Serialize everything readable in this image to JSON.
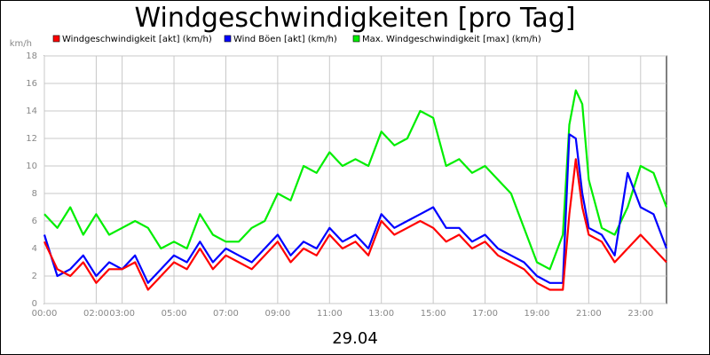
{
  "chart_data": {
    "type": "line",
    "title": "Windgeschwindigkeiten [pro Tag]",
    "ylabel": "km/h",
    "xlabel": "29.04",
    "ylim": [
      0,
      18
    ],
    "yticks": [
      "0",
      "2",
      "4",
      "6",
      "8",
      "10",
      "12",
      "14",
      "16",
      "18"
    ],
    "xticks": [
      "00:00",
      "02:00",
      "03:00",
      "05:00",
      "07:00",
      "09:00",
      "11:00",
      "13:00",
      "15:00",
      "17:00",
      "19:00",
      "21:00",
      "23:00"
    ],
    "xtick_hours": [
      0,
      2,
      3,
      5,
      7,
      9,
      11,
      13,
      15,
      17,
      19,
      21,
      23
    ],
    "xlim_hours": [
      0,
      24
    ],
    "grid": true,
    "legend_position": "top",
    "series": [
      {
        "name": "Windgeschwindigkeit [akt] (km/h)",
        "color": "#ff0000",
        "x": [
          0,
          0.5,
          1,
          1.5,
          2,
          2.5,
          3,
          3.5,
          4,
          4.5,
          5,
          5.5,
          6,
          6.5,
          7,
          7.5,
          8,
          8.5,
          9,
          9.5,
          10,
          10.5,
          11,
          11.5,
          12,
          12.5,
          13,
          13.5,
          14,
          14.5,
          15,
          15.5,
          16,
          16.5,
          17,
          17.5,
          18,
          18.5,
          19,
          19.5,
          20,
          20.25,
          20.5,
          20.75,
          21,
          21.5,
          22,
          22.5,
          23,
          23.5,
          24
        ],
        "values": [
          4.5,
          2.5,
          2.0,
          3.0,
          1.5,
          2.5,
          2.5,
          3.0,
          1.0,
          2.0,
          3.0,
          2.5,
          4.0,
          2.5,
          3.5,
          3.0,
          2.5,
          3.5,
          4.5,
          3.0,
          4.0,
          3.5,
          5.0,
          4.0,
          4.5,
          3.5,
          6.0,
          5.0,
          5.5,
          6.0,
          5.5,
          4.5,
          5.0,
          4.0,
          4.5,
          3.5,
          3.0,
          2.5,
          1.5,
          1.0,
          1.0,
          6.5,
          10.5,
          7.0,
          5.0,
          4.5,
          3.0,
          4.0,
          5.0,
          4.0,
          3.0
        ]
      },
      {
        "name": "Wind Böen [akt] (km/h)",
        "color": "#0000ff",
        "x": [
          0,
          0.5,
          1,
          1.5,
          2,
          2.5,
          3,
          3.5,
          4,
          4.5,
          5,
          5.5,
          6,
          6.5,
          7,
          7.5,
          8,
          8.5,
          9,
          9.5,
          10,
          10.5,
          11,
          11.5,
          12,
          12.5,
          13,
          13.5,
          14,
          14.5,
          15,
          15.5,
          16,
          16.5,
          17,
          17.5,
          18,
          18.5,
          19,
          19.5,
          20,
          20.25,
          20.5,
          20.75,
          21,
          21.5,
          22,
          22.5,
          23,
          23.5,
          24
        ],
        "values": [
          5.0,
          2.0,
          2.5,
          3.5,
          2.0,
          3.0,
          2.5,
          3.5,
          1.5,
          2.5,
          3.5,
          3.0,
          4.5,
          3.0,
          4.0,
          3.5,
          3.0,
          4.0,
          5.0,
          3.5,
          4.5,
          4.0,
          5.5,
          4.5,
          5.0,
          4.0,
          6.5,
          5.5,
          6.0,
          6.5,
          7.0,
          5.5,
          5.5,
          4.5,
          5.0,
          4.0,
          3.5,
          3.0,
          2.0,
          1.5,
          1.5,
          12.3,
          12.0,
          8.0,
          5.5,
          5.0,
          3.5,
          9.5,
          7.0,
          6.5,
          4.0
        ]
      },
      {
        "name": "Max. Windgeschwindigkeit [max] (km/h)",
        "color": "#00ee00",
        "x": [
          0,
          0.5,
          1,
          1.5,
          2,
          2.5,
          3,
          3.5,
          4,
          4.5,
          5,
          5.5,
          6,
          6.5,
          7,
          7.5,
          8,
          8.5,
          9,
          9.5,
          10,
          10.5,
          11,
          11.5,
          12,
          12.5,
          13,
          13.5,
          14,
          14.5,
          15,
          15.5,
          16,
          16.5,
          17,
          17.5,
          18,
          18.5,
          19,
          19.5,
          20,
          20.25,
          20.5,
          20.75,
          21,
          21.5,
          22,
          22.5,
          23,
          23.5,
          24
        ],
        "values": [
          6.5,
          5.5,
          7.0,
          5.0,
          6.5,
          5.0,
          5.5,
          6.0,
          5.5,
          4.0,
          4.5,
          4.0,
          6.5,
          5.0,
          4.5,
          4.5,
          5.5,
          6.0,
          8.0,
          7.5,
          10.0,
          9.5,
          11.0,
          10.0,
          10.5,
          10.0,
          12.5,
          11.5,
          12.0,
          14.0,
          13.5,
          10.0,
          10.5,
          9.5,
          10.0,
          9.0,
          8.0,
          5.5,
          3.0,
          2.5,
          5.0,
          13.0,
          15.5,
          14.5,
          9.0,
          5.5,
          5.0,
          7.0,
          10.0,
          9.5,
          7.0
        ]
      }
    ]
  }
}
